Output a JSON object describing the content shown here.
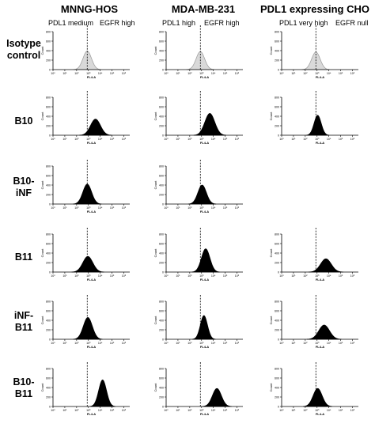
{
  "columns": [
    {
      "title": "MNNG-HOS",
      "pdl1": "PDL1 medium",
      "egfr": "EGFR high"
    },
    {
      "title": "MDA-MB-231",
      "pdl1": "PDL1 high",
      "egfr": "EGFR high"
    },
    {
      "title": "PDL1 expressing CHO",
      "pdl1": "PDL1 very high",
      "egfr": "EGFR null"
    }
  ],
  "rows": [
    {
      "label_line1": "Isotype",
      "label_line2": "control"
    },
    {
      "label_line1": "B10",
      "label_line2": ""
    },
    {
      "label_line1": "B10-",
      "label_line2": "iNF"
    },
    {
      "label_line1": "B11",
      "label_line2": ""
    },
    {
      "label_line1": "iNF-",
      "label_line2": "B11"
    },
    {
      "label_line1": "B10-",
      "label_line2": "B11"
    }
  ],
  "chart_data": {
    "type": "area",
    "xlabel": "FL4-A",
    "ylabel": "Count",
    "x_scale": "log",
    "x_ticks": [
      "10⁰",
      "10¹",
      "10²",
      "10³",
      "10⁴",
      "10⁵",
      "10⁶"
    ],
    "y_ticks": [
      "0",
      "200",
      "400",
      "600",
      "800"
    ],
    "ylim": [
      0,
      800
    ],
    "xlim_log10": [
      0,
      6.5
    ],
    "isotype_reference_log10": 2.9,
    "colors": {
      "isotype_fill": "#d9d9d9",
      "isotype_stroke": "#999999",
      "sample_fill": "#000000",
      "reference_line": "#000000"
    },
    "panels": [
      {
        "row": 0,
        "col": 0,
        "sample": "Isotype control",
        "style": "isotype",
        "peak_log10": 2.9,
        "width_log10": 0.36,
        "peak_count": 390
      },
      {
        "row": 0,
        "col": 1,
        "sample": "Isotype control",
        "style": "isotype",
        "peak_log10": 2.9,
        "width_log10": 0.36,
        "peak_count": 380
      },
      {
        "row": 0,
        "col": 2,
        "sample": "Isotype control",
        "style": "isotype",
        "peak_log10": 2.9,
        "width_log10": 0.36,
        "peak_count": 370
      },
      {
        "row": 1,
        "col": 0,
        "sample": "B10",
        "style": "filled",
        "peak_log10": 3.6,
        "width_log10": 0.42,
        "peak_count": 340
      },
      {
        "row": 1,
        "col": 1,
        "sample": "B10",
        "style": "filled",
        "peak_log10": 3.7,
        "width_log10": 0.42,
        "peak_count": 460
      },
      {
        "row": 1,
        "col": 2,
        "sample": "B10",
        "style": "filled",
        "peak_log10": 3.05,
        "width_log10": 0.3,
        "peak_count": 420
      },
      {
        "row": 2,
        "col": 0,
        "sample": "B10-iNF",
        "style": "filled",
        "peak_log10": 2.9,
        "width_log10": 0.37,
        "peak_count": 420
      },
      {
        "row": 2,
        "col": 1,
        "sample": "B10-iNF",
        "style": "filled",
        "peak_log10": 3.05,
        "width_log10": 0.36,
        "peak_count": 400
      },
      {
        "row": 3,
        "col": 0,
        "sample": "B11",
        "style": "filled",
        "peak_log10": 2.95,
        "width_log10": 0.42,
        "peak_count": 330
      },
      {
        "row": 3,
        "col": 1,
        "sample": "B11",
        "style": "filled",
        "peak_log10": 3.35,
        "width_log10": 0.36,
        "peak_count": 490
      },
      {
        "row": 3,
        "col": 2,
        "sample": "B11",
        "style": "filled",
        "peak_log10": 3.75,
        "width_log10": 0.45,
        "peak_count": 280
      },
      {
        "row": 4,
        "col": 0,
        "sample": "iNF-B11",
        "style": "filled",
        "peak_log10": 2.95,
        "width_log10": 0.38,
        "peak_count": 460
      },
      {
        "row": 4,
        "col": 1,
        "sample": "iNF-B11",
        "style": "filled",
        "peak_log10": 3.2,
        "width_log10": 0.3,
        "peak_count": 500
      },
      {
        "row": 4,
        "col": 2,
        "sample": "iNF-B11",
        "style": "filled",
        "peak_log10": 3.6,
        "width_log10": 0.45,
        "peak_count": 300
      },
      {
        "row": 5,
        "col": 0,
        "sample": "B10-B11",
        "style": "filled",
        "peak_log10": 4.2,
        "width_log10": 0.33,
        "peak_count": 560
      },
      {
        "row": 5,
        "col": 1,
        "sample": "B10-B11",
        "style": "filled",
        "peak_log10": 4.3,
        "width_log10": 0.38,
        "peak_count": 380
      },
      {
        "row": 5,
        "col": 2,
        "sample": "B10-B11",
        "style": "filled",
        "peak_log10": 3.05,
        "width_log10": 0.38,
        "peak_count": 380
      }
    ]
  }
}
